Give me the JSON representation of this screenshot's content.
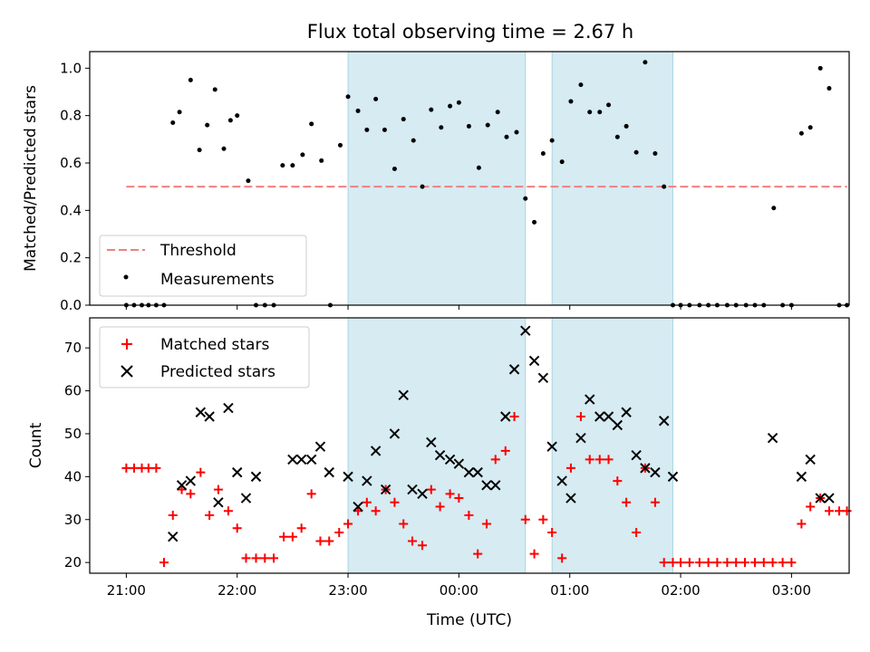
{
  "chart_data": [
    {
      "type": "scatter",
      "title": "Flux total observing time = 2.67 h",
      "ylabel": "Matched/Predicted stars",
      "xlabel": "",
      "xlim": [
        -0.33,
        6.52
      ],
      "ylim": [
        0.0,
        1.07
      ],
      "yticks": [
        0.0,
        0.2,
        0.4,
        0.6,
        0.8,
        1.0
      ],
      "ytick_labels": [
        "0.0",
        "0.2",
        "0.4",
        "0.6",
        "0.8",
        "1.0"
      ],
      "xticks": [
        0,
        1,
        2,
        3,
        4,
        5,
        6
      ],
      "legend_position": "lower-left",
      "shaded_intervals": [
        [
          2.0,
          3.6
        ],
        [
          3.84,
          4.93
        ]
      ],
      "threshold": {
        "name": "Threshold",
        "value": 0.5,
        "x_range": [
          0.0,
          6.5
        ],
        "color": "#f08080"
      },
      "series": [
        {
          "name": "Measurements",
          "color": "#000000",
          "marker": "dot",
          "x": [
            0.0,
            0.07,
            0.14,
            0.2,
            0.27,
            0.34,
            0.42,
            0.48,
            0.58,
            0.66,
            0.73,
            0.8,
            0.88,
            0.94,
            1.0,
            1.1,
            1.17,
            1.25,
            1.33,
            1.41,
            1.5,
            1.59,
            1.67,
            1.76,
            1.84,
            1.93,
            2.0,
            2.09,
            2.17,
            2.25,
            2.33,
            2.42,
            2.5,
            2.59,
            2.67,
            2.75,
            2.84,
            2.92,
            3.0,
            3.09,
            3.18,
            3.26,
            3.35,
            3.43,
            3.52,
            3.6,
            3.68,
            3.76,
            3.84,
            3.93,
            4.01,
            4.1,
            4.18,
            4.27,
            4.35,
            4.43,
            4.51,
            4.6,
            4.68,
            4.77,
            4.85,
            4.93,
            5.0,
            5.08,
            5.17,
            5.25,
            5.33,
            5.42,
            5.5,
            5.59,
            5.67,
            5.75,
            5.84,
            5.92,
            6.0,
            6.09,
            6.17,
            6.26,
            6.34,
            6.43,
            6.5
          ],
          "y": [
            0.0,
            0.0,
            0.0,
            0.0,
            0.0,
            0.0,
            0.77,
            0.815,
            0.95,
            0.655,
            0.76,
            0.91,
            0.66,
            0.78,
            0.8,
            0.525,
            0.0,
            0.0,
            0.0,
            0.59,
            0.59,
            0.635,
            0.765,
            0.61,
            0.0,
            0.675,
            0.88,
            0.82,
            0.74,
            0.87,
            0.74,
            0.575,
            0.785,
            0.695,
            0.5,
            0.825,
            0.75,
            0.84,
            0.855,
            0.755,
            0.58,
            0.76,
            0.815,
            0.71,
            0.73,
            0.45,
            0.35,
            0.64,
            0.695,
            0.605,
            0.86,
            0.93,
            0.815,
            0.815,
            0.845,
            0.71,
            0.755,
            0.645,
            1.025,
            0.64,
            0.5,
            0.0,
            0.0,
            0.0,
            0.0,
            0.0,
            0.0,
            0.0,
            0.0,
            0.0,
            0.0,
            0.0,
            0.41,
            0.0,
            0.0,
            0.725,
            0.75,
            1.0,
            0.915,
            0.0,
            0.0
          ]
        }
      ]
    },
    {
      "type": "scatter",
      "title": "",
      "ylabel": "Count",
      "xlabel": "Time (UTC)",
      "xlim": [
        -0.33,
        6.52
      ],
      "ylim": [
        17.5,
        77.0
      ],
      "yticks": [
        20,
        30,
        40,
        50,
        60,
        70
      ],
      "ytick_labels": [
        "20",
        "30",
        "40",
        "50",
        "60",
        "70"
      ],
      "xticks": [
        0,
        1,
        2,
        3,
        4,
        5,
        6
      ],
      "xtick_labels": [
        "21:00",
        "22:00",
        "23:00",
        "00:00",
        "01:00",
        "02:00",
        "03:00"
      ],
      "legend_position": "upper-left",
      "shaded_intervals": [
        [
          2.0,
          3.6
        ],
        [
          3.84,
          4.93
        ]
      ],
      "series": [
        {
          "name": "Matched stars",
          "color": "#ff0000",
          "marker": "plus",
          "x": [
            0.0,
            0.07,
            0.14,
            0.2,
            0.27,
            0.34,
            0.42,
            0.5,
            0.58,
            0.67,
            0.75,
            0.83,
            0.92,
            1.0,
            1.08,
            1.17,
            1.25,
            1.33,
            1.42,
            1.5,
            1.58,
            1.67,
            1.75,
            1.83,
            1.92,
            2.0,
            2.09,
            2.17,
            2.25,
            2.34,
            2.42,
            2.5,
            2.58,
            2.67,
            2.75,
            2.83,
            2.92,
            3.0,
            3.09,
            3.17,
            3.25,
            3.33,
            3.42,
            3.5,
            3.6,
            3.68,
            3.76,
            3.84,
            3.93,
            4.01,
            4.1,
            4.18,
            4.27,
            4.35,
            4.43,
            4.51,
            4.6,
            4.68,
            4.77,
            4.85,
            4.93,
            5.0,
            5.08,
            5.17,
            5.25,
            5.33,
            5.42,
            5.5,
            5.58,
            5.67,
            5.75,
            5.83,
            5.92,
            6.0,
            6.09,
            6.17,
            6.26,
            6.34,
            6.43,
            6.5
          ],
          "y": [
            42,
            42,
            42,
            42,
            42,
            20,
            31,
            37,
            36,
            41,
            31,
            37,
            32,
            28,
            21,
            21,
            21,
            21,
            26,
            26,
            28,
            36,
            25,
            25,
            27,
            29,
            32,
            34,
            32,
            37,
            34,
            29,
            25,
            24,
            37,
            33,
            36,
            35,
            31,
            22,
            29,
            44,
            46,
            54,
            30,
            22,
            30,
            27,
            21,
            42,
            54,
            44,
            44,
            44,
            39,
            34,
            27,
            42,
            34,
            20,
            20,
            20,
            20,
            20,
            20,
            20,
            20,
            20,
            20,
            20,
            20,
            20,
            20,
            20,
            29,
            33,
            35,
            32,
            32,
            32
          ]
        },
        {
          "name": "Predicted stars",
          "color": "#000000",
          "marker": "x",
          "x": [
            0.42,
            0.5,
            0.58,
            0.67,
            0.75,
            0.83,
            0.92,
            1.0,
            1.08,
            1.17,
            1.5,
            1.58,
            1.67,
            1.75,
            1.83,
            2.0,
            2.09,
            2.17,
            2.25,
            2.34,
            2.42,
            2.5,
            2.58,
            2.67,
            2.75,
            2.83,
            2.92,
            3.0,
            3.09,
            3.17,
            3.25,
            3.33,
            3.42,
            3.5,
            3.6,
            3.68,
            3.76,
            3.84,
            3.93,
            4.01,
            4.1,
            4.18,
            4.27,
            4.35,
            4.43,
            4.51,
            4.6,
            4.68,
            4.77,
            4.85,
            4.93,
            5.83,
            6.09,
            6.17,
            6.26,
            6.34
          ],
          "y": [
            26,
            38,
            39,
            55,
            54,
            34,
            56,
            41,
            35,
            40,
            44,
            44,
            44,
            47,
            41,
            40,
            33,
            39,
            46,
            37,
            50,
            59,
            37,
            36,
            48,
            45,
            44,
            43,
            41,
            41,
            38,
            38,
            54,
            65,
            74,
            67,
            63,
            47,
            39,
            35,
            49,
            58,
            54,
            54,
            52,
            55,
            45,
            42,
            41,
            53,
            40,
            49,
            40,
            44,
            35,
            35
          ]
        }
      ]
    }
  ]
}
